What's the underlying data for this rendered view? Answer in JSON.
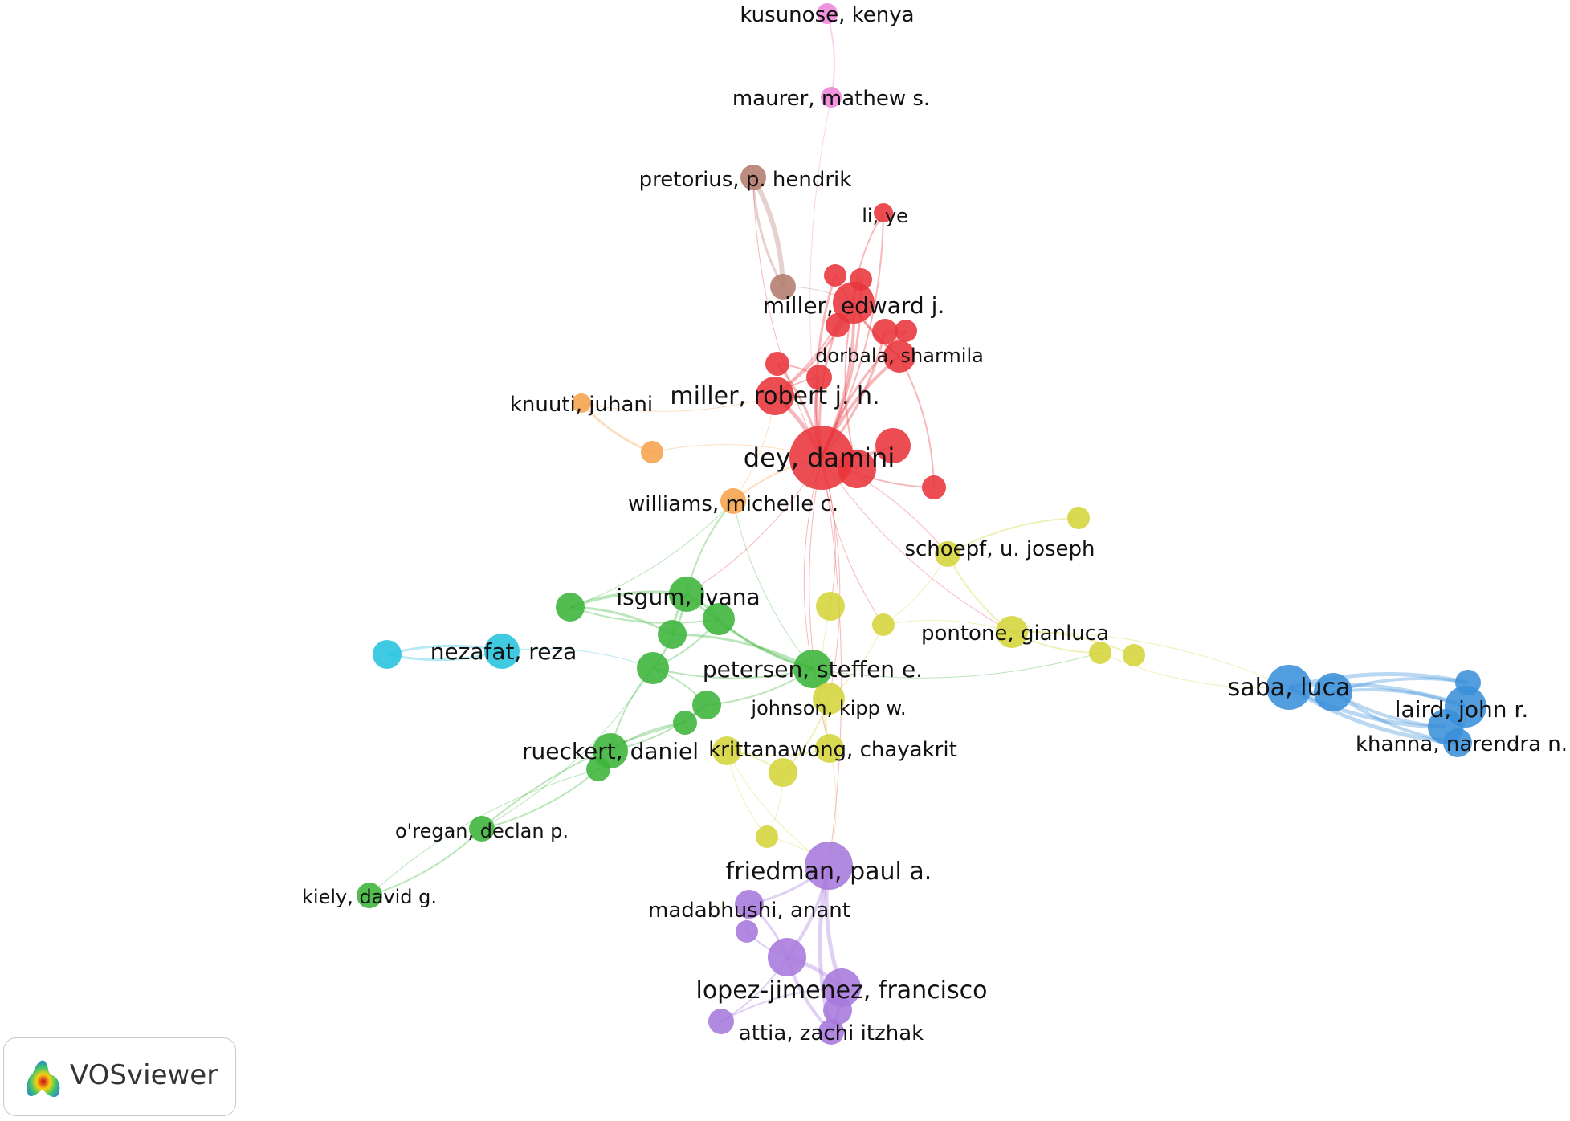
{
  "colors": {
    "red": "#e8343b",
    "green": "#3cb43a",
    "blue": "#3a8fd9",
    "yellow": "#d4d43a",
    "purple": "#a779dc",
    "cyan": "#26c3de",
    "orange": "#f6a24c",
    "brown": "#b47c70",
    "pink": "#ef85d8"
  },
  "logo": {
    "text": "VOSviewer",
    "icon": "vosviewer-logo-icon"
  },
  "authors": [
    {
      "id": "kusunose",
      "label": "kusunose, kenya",
      "cluster": "pink"
    },
    {
      "id": "maurer",
      "label": "maurer, mathew s.",
      "cluster": "pink"
    },
    {
      "id": "pretorius",
      "label": "pretorius, p. hendrik",
      "cluster": "brown"
    },
    {
      "id": "liye",
      "label": "li, ye",
      "cluster": "red"
    },
    {
      "id": "miller_ej",
      "label": "miller, edward j.",
      "cluster": "red"
    },
    {
      "id": "dorbala",
      "label": "dorbala, sharmila",
      "cluster": "red"
    },
    {
      "id": "knuuti",
      "label": "knuuti, juhani",
      "cluster": "orange"
    },
    {
      "id": "miller_rjh",
      "label": "miller, robert j. h.",
      "cluster": "red"
    },
    {
      "id": "dey",
      "label": "dey, damini",
      "cluster": "red"
    },
    {
      "id": "williams",
      "label": "williams, michelle c.",
      "cluster": "orange"
    },
    {
      "id": "schoepf",
      "label": "schoepf, u. joseph",
      "cluster": "yellow"
    },
    {
      "id": "isgum",
      "label": "isgum, ivana",
      "cluster": "green"
    },
    {
      "id": "pontone",
      "label": "pontone, gianluca",
      "cluster": "yellow"
    },
    {
      "id": "nezafat",
      "label": "nezafat, reza",
      "cluster": "cyan"
    },
    {
      "id": "petersen",
      "label": "petersen, steffen e.",
      "cluster": "green"
    },
    {
      "id": "saba",
      "label": "saba, luca",
      "cluster": "blue"
    },
    {
      "id": "laird",
      "label": "laird, john r.",
      "cluster": "blue"
    },
    {
      "id": "johnson",
      "label": "johnson, kipp w.",
      "cluster": "yellow"
    },
    {
      "id": "khanna",
      "label": "khanna, narendra n.",
      "cluster": "blue"
    },
    {
      "id": "rueckert",
      "label": "rueckert, daniel",
      "cluster": "green"
    },
    {
      "id": "krittanawong",
      "label": "krittanawong, chayakrit",
      "cluster": "yellow"
    },
    {
      "id": "oregan",
      "label": "o'regan, declan p.",
      "cluster": "green"
    },
    {
      "id": "friedman",
      "label": "friedman, paul a.",
      "cluster": "purple"
    },
    {
      "id": "kiely",
      "label": "kiely, david g.",
      "cluster": "green"
    },
    {
      "id": "madabhushi",
      "label": "madabhushi, anant",
      "cluster": "purple"
    },
    {
      "id": "lopez",
      "label": "lopez-jimenez, francisco",
      "cluster": "purple"
    },
    {
      "id": "attia",
      "label": "attia, zachi itzhak",
      "cluster": "purple"
    }
  ],
  "extra_nodes": [
    {
      "id": "r1",
      "cluster": "red"
    },
    {
      "id": "r2",
      "cluster": "red"
    },
    {
      "id": "r3",
      "cluster": "red"
    },
    {
      "id": "r4",
      "cluster": "red"
    },
    {
      "id": "r5",
      "cluster": "red"
    },
    {
      "id": "r6",
      "cluster": "red"
    },
    {
      "id": "r7",
      "cluster": "red"
    },
    {
      "id": "r8",
      "cluster": "red"
    },
    {
      "id": "r9",
      "cluster": "red"
    },
    {
      "id": "r10",
      "cluster": "red"
    },
    {
      "id": "br1",
      "cluster": "brown"
    },
    {
      "id": "o1",
      "cluster": "orange"
    },
    {
      "id": "y1",
      "cluster": "yellow"
    },
    {
      "id": "y2",
      "cluster": "yellow"
    },
    {
      "id": "y3",
      "cluster": "yellow"
    },
    {
      "id": "y4",
      "cluster": "yellow"
    },
    {
      "id": "y5",
      "cluster": "yellow"
    },
    {
      "id": "y6",
      "cluster": "yellow"
    },
    {
      "id": "y7",
      "cluster": "yellow"
    },
    {
      "id": "y8",
      "cluster": "yellow"
    },
    {
      "id": "g1",
      "cluster": "green"
    },
    {
      "id": "g2",
      "cluster": "green"
    },
    {
      "id": "g3",
      "cluster": "green"
    },
    {
      "id": "g4",
      "cluster": "green"
    },
    {
      "id": "g5",
      "cluster": "green"
    },
    {
      "id": "g6",
      "cluster": "green"
    },
    {
      "id": "g7",
      "cluster": "green"
    },
    {
      "id": "c1",
      "cluster": "cyan"
    },
    {
      "id": "b1",
      "cluster": "blue"
    },
    {
      "id": "b2",
      "cluster": "blue"
    },
    {
      "id": "b3",
      "cluster": "blue"
    },
    {
      "id": "p1",
      "cluster": "purple"
    },
    {
      "id": "p2",
      "cluster": "purple"
    },
    {
      "id": "p3",
      "cluster": "purple"
    },
    {
      "id": "p4",
      "cluster": "purple"
    }
  ],
  "links": [
    [
      "kusunose",
      "maurer",
      "pink",
      2
    ],
    [
      "maurer",
      "dey",
      "pink",
      1
    ],
    [
      "pretorius",
      "br1",
      "brown",
      6
    ],
    [
      "pretorius",
      "br1",
      "brown",
      3
    ],
    [
      "br1",
      "miller_ej",
      "brown",
      1
    ],
    [
      "liye",
      "miller_ej",
      "red",
      2
    ],
    [
      "liye",
      "dey",
      "red",
      2
    ],
    [
      "pretorius",
      "dey",
      "red",
      1
    ],
    [
      "miller_ej",
      "dey",
      "red",
      4
    ],
    [
      "miller_ej",
      "dorbala",
      "red",
      3
    ],
    [
      "miller_ej",
      "miller_rjh",
      "red",
      3
    ],
    [
      "dorbala",
      "dey",
      "red",
      4
    ],
    [
      "miller_rjh",
      "dey",
      "red",
      5
    ],
    [
      "r1",
      "dey",
      "red",
      3
    ],
    [
      "r2",
      "dey",
      "red",
      3
    ],
    [
      "r3",
      "dey",
      "red",
      3
    ],
    [
      "r4",
      "dey",
      "red",
      3
    ],
    [
      "r5",
      "dey",
      "red",
      3
    ],
    [
      "r6",
      "dey",
      "red",
      3
    ],
    [
      "r7",
      "dey",
      "red",
      3
    ],
    [
      "r8",
      "dey",
      "red",
      3
    ],
    [
      "r9",
      "dey",
      "red",
      3
    ],
    [
      "r10",
      "dey",
      "red",
      2
    ],
    [
      "r1",
      "dorbala",
      "red",
      2
    ],
    [
      "r2",
      "miller_rjh",
      "red",
      2
    ],
    [
      "r4",
      "r5",
      "red",
      2
    ],
    [
      "r6",
      "r7",
      "red",
      2
    ],
    [
      "r3",
      "miller_ej",
      "red",
      2
    ],
    [
      "r9",
      "miller_ej",
      "red",
      2
    ],
    [
      "r10",
      "dorbala",
      "red",
      2
    ],
    [
      "miller_rjh",
      "r7",
      "red",
      2
    ],
    [
      "knuuti",
      "o1",
      "orange",
      3
    ],
    [
      "o1",
      "dey",
      "orange",
      1
    ],
    [
      "knuuti",
      "miller_rjh",
      "orange",
      1
    ],
    [
      "williams",
      "dey",
      "orange",
      2
    ],
    [
      "williams",
      "miller_rjh",
      "orange",
      1
    ],
    [
      "dey",
      "schoepf",
      "red",
      1
    ],
    [
      "dey",
      "pontone",
      "red",
      1
    ],
    [
      "dey",
      "isgum",
      "red",
      1
    ],
    [
      "dey",
      "petersen",
      "red",
      1
    ],
    [
      "dey",
      "y1",
      "red",
      1
    ],
    [
      "dey",
      "y2",
      "red",
      1
    ],
    [
      "dey",
      "johnson",
      "red",
      1
    ],
    [
      "dey",
      "krittanawong",
      "red",
      1
    ],
    [
      "dey",
      "friedman",
      "red",
      1
    ],
    [
      "williams",
      "isgum",
      "green",
      2
    ],
    [
      "williams",
      "g1",
      "green",
      1
    ],
    [
      "williams",
      "petersen",
      "green",
      1
    ],
    [
      "schoepf",
      "y8",
      "yellow",
      2
    ],
    [
      "schoepf",
      "pontone",
      "yellow",
      2
    ],
    [
      "schoepf",
      "y2",
      "yellow",
      1
    ],
    [
      "pontone",
      "y3",
      "yellow",
      2
    ],
    [
      "pontone",
      "y4",
      "yellow",
      2
    ],
    [
      "pontone",
      "y2",
      "yellow",
      1
    ],
    [
      "pontone",
      "saba",
      "yellow",
      1
    ],
    [
      "y1",
      "krittanawong",
      "yellow",
      1
    ],
    [
      "y2",
      "johnson",
      "yellow",
      1
    ],
    [
      "johnson",
      "krittanawong",
      "yellow",
      2
    ],
    [
      "johnson",
      "y5",
      "yellow",
      2
    ],
    [
      "y5",
      "y6",
      "yellow",
      2
    ],
    [
      "krittanawong",
      "y6",
      "yellow",
      2
    ],
    [
      "y6",
      "y7",
      "yellow",
      1
    ],
    [
      "y5",
      "y7",
      "yellow",
      1
    ],
    [
      "y6",
      "friedman",
      "yellow",
      1
    ],
    [
      "krittanawong",
      "friedman",
      "yellow",
      1
    ],
    [
      "isgum",
      "g1",
      "green",
      4
    ],
    [
      "isgum",
      "g2",
      "green",
      3
    ],
    [
      "isgum",
      "g3",
      "green",
      3
    ],
    [
      "isgum",
      "g4",
      "green",
      3
    ],
    [
      "isgum",
      "petersen",
      "green",
      3
    ],
    [
      "g1",
      "g3",
      "green",
      3
    ],
    [
      "g1",
      "g2",
      "green",
      2
    ],
    [
      "g2",
      "g4",
      "green",
      2
    ],
    [
      "g2",
      "petersen",
      "green",
      3
    ],
    [
      "g3",
      "petersen",
      "green",
      3
    ],
    [
      "g4",
      "petersen",
      "green",
      2
    ],
    [
      "g4",
      "g5",
      "green",
      2
    ],
    [
      "g5",
      "petersen",
      "green",
      2
    ],
    [
      "g5",
      "rueckert",
      "green",
      2
    ],
    [
      "g4",
      "rueckert",
      "green",
      2
    ],
    [
      "rueckert",
      "g6",
      "green",
      2
    ],
    [
      "rueckert",
      "g7",
      "green",
      2
    ],
    [
      "g7",
      "oregan",
      "green",
      2
    ],
    [
      "g6",
      "oregan",
      "green",
      2
    ],
    [
      "oregan",
      "kiely",
      "green",
      2
    ],
    [
      "g7",
      "kiely",
      "green",
      1
    ],
    [
      "g4",
      "oregan",
      "green",
      1
    ],
    [
      "g5",
      "g6",
      "green",
      2
    ],
    [
      "petersen",
      "johnson",
      "green",
      1
    ],
    [
      "petersen",
      "y3",
      "green",
      1
    ],
    [
      "nezafat",
      "c1",
      "cyan",
      3
    ],
    [
      "nezafat",
      "c1",
      "cyan",
      3
    ],
    [
      "nezafat",
      "g4",
      "cyan",
      1
    ],
    [
      "saba",
      "b1",
      "blue",
      5
    ],
    [
      "saba",
      "laird",
      "blue",
      5
    ],
    [
      "saba",
      "khanna",
      "blue",
      5
    ],
    [
      "saba",
      "b2",
      "blue",
      5
    ],
    [
      "saba",
      "b3",
      "blue",
      5
    ],
    [
      "b1",
      "laird",
      "blue",
      4
    ],
    [
      "b1",
      "khanna",
      "blue",
      4
    ],
    [
      "b1",
      "b2",
      "blue",
      4
    ],
    [
      "b1",
      "b3",
      "blue",
      4
    ],
    [
      "laird",
      "khanna",
      "blue",
      3
    ],
    [
      "y3",
      "saba",
      "yellow",
      1
    ],
    [
      "friedman",
      "madabhushi",
      "purple",
      3
    ],
    [
      "friedman",
      "lopez",
      "purple",
      5
    ],
    [
      "friedman",
      "p2",
      "purple",
      4
    ],
    [
      "friedman",
      "attia",
      "purple",
      5
    ],
    [
      "madabhushi",
      "p2",
      "purple",
      3
    ],
    [
      "madabhushi",
      "p1",
      "purple",
      2
    ],
    [
      "p2",
      "lopez",
      "purple",
      5
    ],
    [
      "p2",
      "attia",
      "purple",
      4
    ],
    [
      "lopez",
      "attia",
      "purple",
      4
    ],
    [
      "p3",
      "lopez",
      "purple",
      3
    ],
    [
      "p3",
      "attia",
      "purple",
      3
    ],
    [
      "p4",
      "p2",
      "purple",
      2
    ],
    [
      "p4",
      "lopez",
      "purple",
      2
    ],
    [
      "p1",
      "p2",
      "purple",
      2
    ],
    [
      "y7",
      "friedman",
      "yellow",
      1
    ]
  ]
}
